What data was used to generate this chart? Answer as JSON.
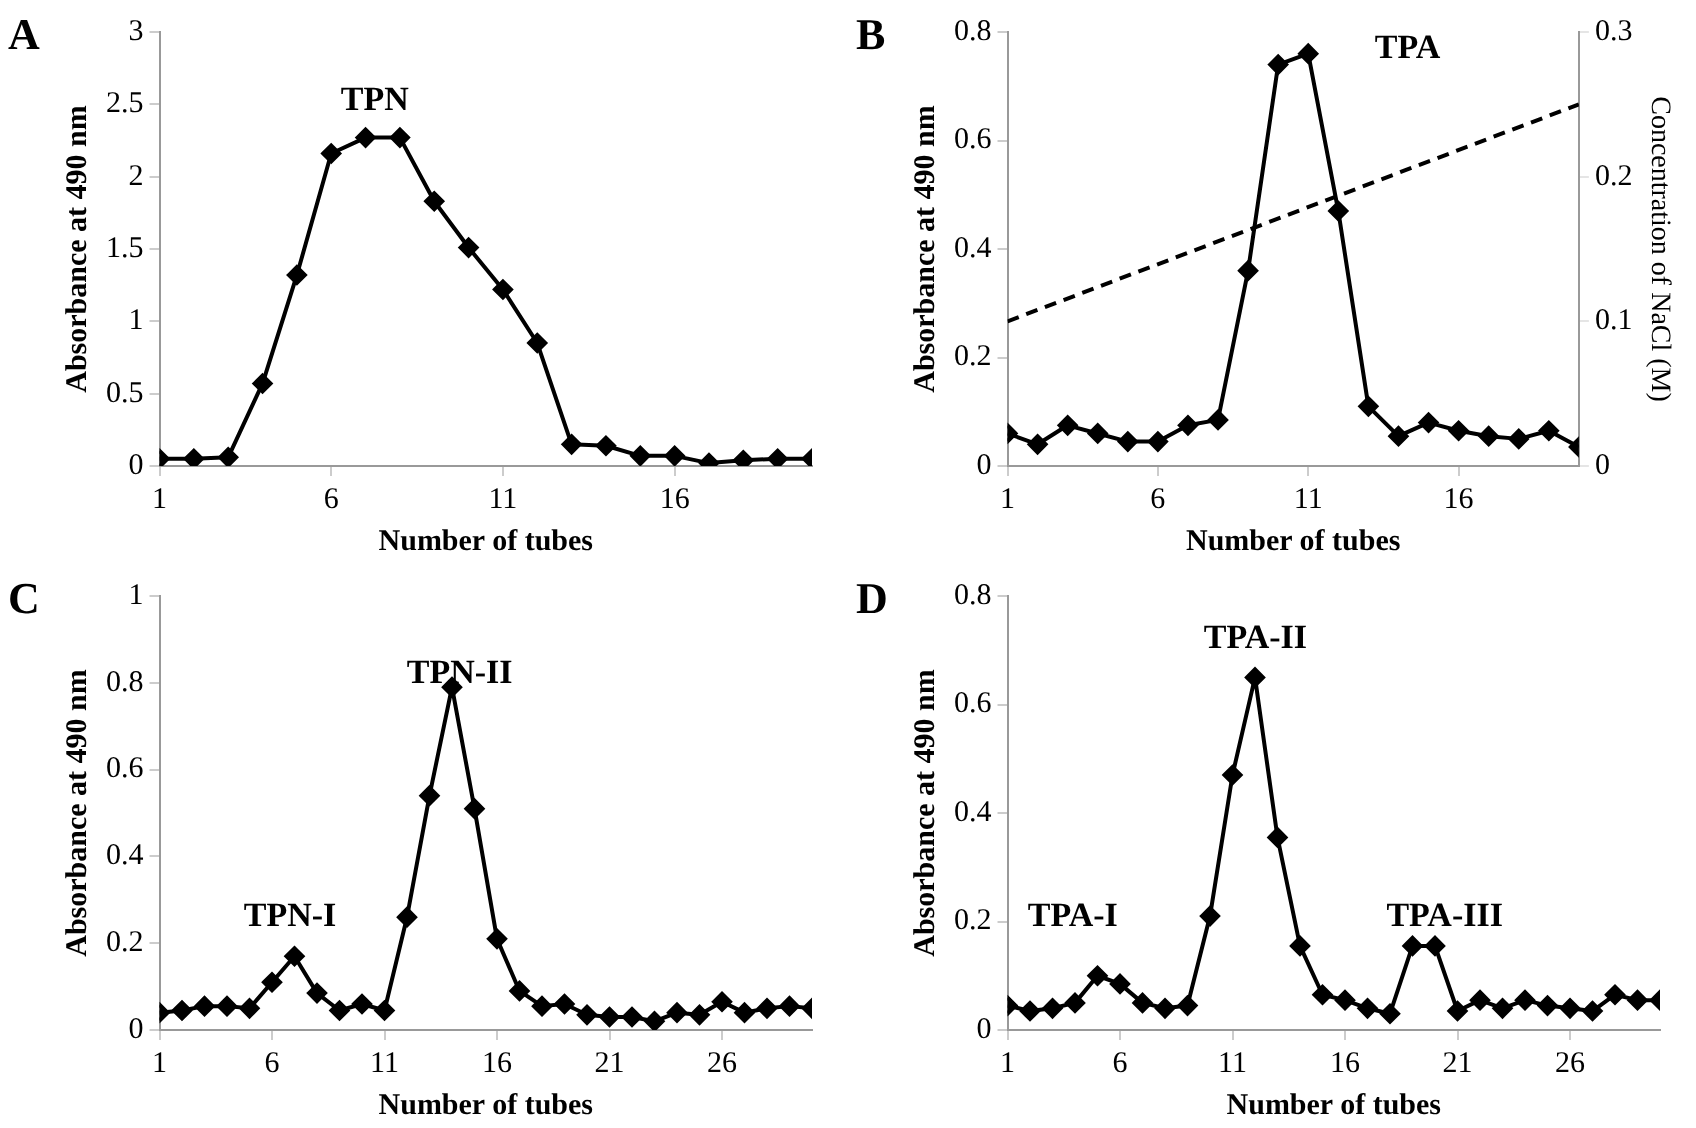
{
  "chart_data": [
    {
      "type": "line",
      "title": "A",
      "xlabel": "Number of tubes",
      "ylabel": "Absorbance at 490 nm",
      "x": [
        1,
        2,
        3,
        4,
        5,
        6,
        7,
        8,
        9,
        10,
        11,
        12,
        13,
        14,
        15,
        16,
        17,
        18,
        19,
        20
      ],
      "xlim": [
        1,
        20
      ],
      "xticks": [
        1,
        6,
        11,
        16
      ],
      "ylim": [
        0,
        3
      ],
      "yticks": [
        0,
        0.5,
        1,
        1.5,
        2,
        2.5,
        3
      ],
      "marker": "diamond",
      "annotations": [
        "TPN"
      ],
      "series": [
        {
          "color": "#000000",
          "values": [
            0.05,
            0.05,
            0.06,
            0.57,
            1.32,
            2.16,
            2.27,
            2.27,
            1.83,
            1.51,
            1.22,
            0.85,
            0.15,
            0.14,
            0.07,
            0.07,
            0.02,
            0.04,
            0.05,
            0.05
          ]
        }
      ]
    },
    {
      "type": "line",
      "title": "B",
      "xlabel": "Number of tubes",
      "ylabel": "Absorbance at 490 nm",
      "y2label": "Concentration of NaCl (M)",
      "x": [
        1,
        2,
        3,
        4,
        5,
        6,
        7,
        8,
        9,
        10,
        11,
        12,
        13,
        14,
        15,
        16,
        17,
        18,
        19,
        20
      ],
      "xlim": [
        1,
        20
      ],
      "xticks": [
        1,
        6,
        11,
        16
      ],
      "ylim": [
        0,
        0.8
      ],
      "yticks": [
        0,
        0.2,
        0.4,
        0.6,
        0.8
      ],
      "y2lim": [
        0,
        0.3
      ],
      "y2ticks": [
        0,
        0.1,
        0.2,
        0.3
      ],
      "marker": "diamond",
      "annotations": [
        "TPA"
      ],
      "series": [
        {
          "color": "#000000",
          "values": [
            0.06,
            0.04,
            0.075,
            0.06,
            0.045,
            0.045,
            0.075,
            0.085,
            0.36,
            0.74,
            0.76,
            0.47,
            0.11,
            0.055,
            0.08,
            0.065,
            0.055,
            0.05,
            0.065,
            0.035
          ]
        },
        {
          "color": "#000000",
          "axis": "y2",
          "marker": "none",
          "line_style": "dashed",
          "x": [
            1,
            20
          ],
          "values": [
            0.1,
            0.25
          ]
        }
      ]
    },
    {
      "type": "line",
      "title": "C",
      "xlabel": "Number of tubes",
      "ylabel": "Absorbance at 490 nm",
      "x": [
        1,
        2,
        3,
        4,
        5,
        6,
        7,
        8,
        9,
        10,
        11,
        12,
        13,
        14,
        15,
        16,
        17,
        18,
        19,
        20,
        21,
        22,
        23,
        24,
        25,
        26,
        27,
        28,
        29,
        30
      ],
      "xlim": [
        1,
        30
      ],
      "xticks": [
        1,
        6,
        11,
        16,
        21,
        26
      ],
      "ylim": [
        0,
        1
      ],
      "yticks": [
        0,
        0.2,
        0.4,
        0.6,
        0.8,
        1
      ],
      "marker": "diamond",
      "annotations": [
        "TPN-I",
        "TPN-II"
      ],
      "series": [
        {
          "color": "#000000",
          "values": [
            0.04,
            0.045,
            0.055,
            0.055,
            0.05,
            0.11,
            0.17,
            0.085,
            0.045,
            0.06,
            0.045,
            0.26,
            0.54,
            0.79,
            0.51,
            0.21,
            0.09,
            0.055,
            0.06,
            0.035,
            0.03,
            0.03,
            0.02,
            0.04,
            0.035,
            0.065,
            0.04,
            0.05,
            0.055,
            0.05
          ]
        }
      ]
    },
    {
      "type": "line",
      "title": "D",
      "xlabel": "Number of tubes",
      "ylabel": "Absorbance at 490 nm",
      "x": [
        1,
        2,
        3,
        4,
        5,
        6,
        7,
        8,
        9,
        10,
        11,
        12,
        13,
        14,
        15,
        16,
        17,
        18,
        19,
        20,
        21,
        22,
        23,
        24,
        25,
        26,
        27,
        28,
        29,
        30
      ],
      "xlim": [
        1,
        30
      ],
      "xticks": [
        1,
        6,
        11,
        16,
        21,
        26
      ],
      "ylim": [
        0,
        0.8
      ],
      "yticks": [
        0,
        0.2,
        0.4,
        0.6,
        0.8
      ],
      "marker": "diamond",
      "annotations": [
        "TPA-I",
        "TPA-II",
        "TPA-III"
      ],
      "series": [
        {
          "color": "#000000",
          "values": [
            0.045,
            0.035,
            0.04,
            0.05,
            0.1,
            0.085,
            0.05,
            0.04,
            0.045,
            0.21,
            0.47,
            0.65,
            0.355,
            0.155,
            0.065,
            0.055,
            0.04,
            0.03,
            0.155,
            0.155,
            0.035,
            0.055,
            0.04,
            0.055,
            0.045,
            0.04,
            0.035,
            0.065,
            0.055,
            0.055
          ]
        }
      ]
    }
  ]
}
